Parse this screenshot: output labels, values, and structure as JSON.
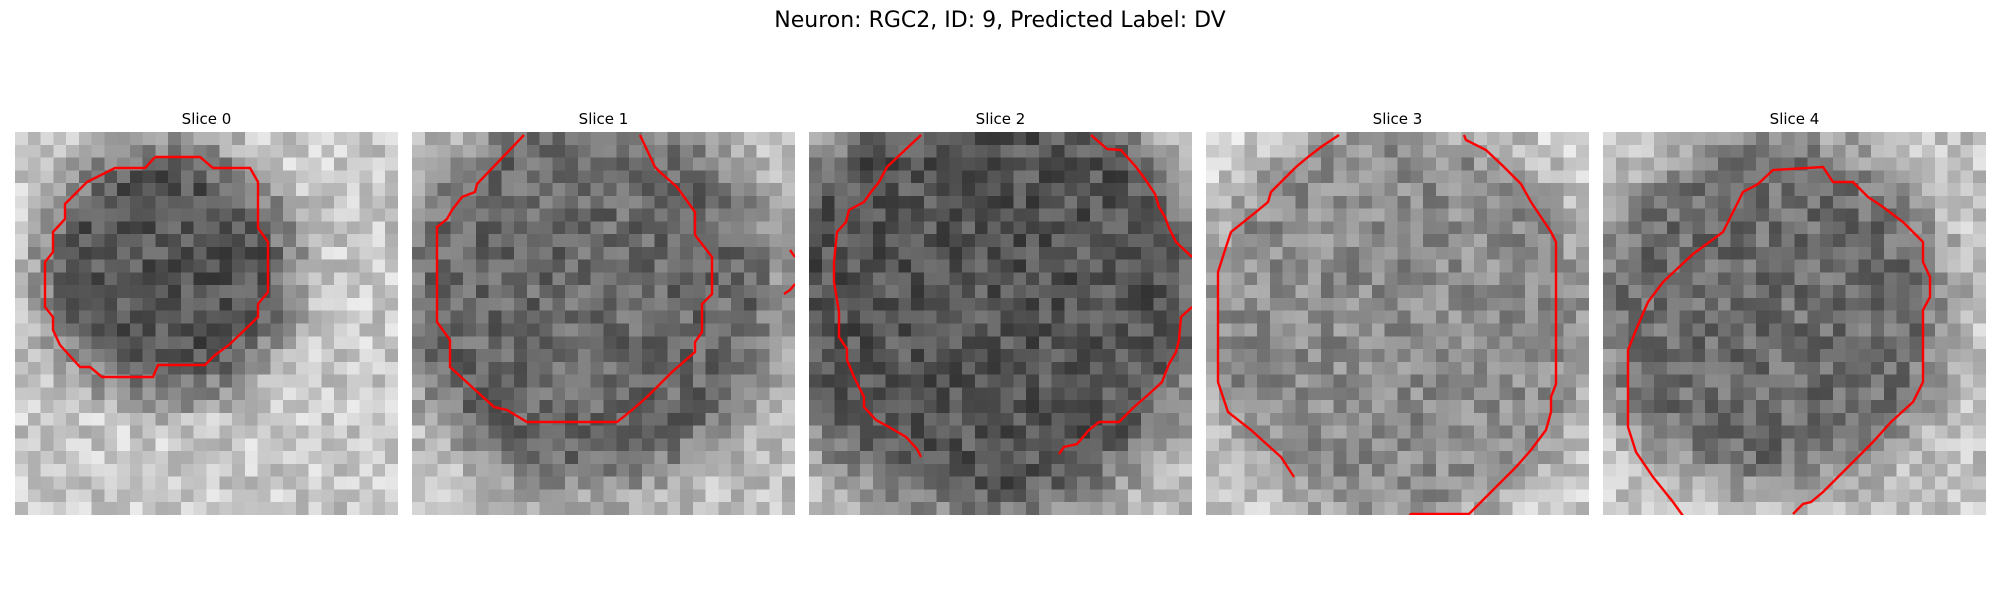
{
  "figure": {
    "title": "Neuron: RGC2, ID: 9, Predicted Label: DV",
    "contour_color": "#ff0000",
    "colormap": "gray",
    "grid_size": 30
  },
  "panels": [
    {
      "title": "Slice 0"
    },
    {
      "title": "Slice 1"
    },
    {
      "title": "Slice 2"
    },
    {
      "title": "Slice 3"
    },
    {
      "title": "Slice 4"
    }
  ]
}
